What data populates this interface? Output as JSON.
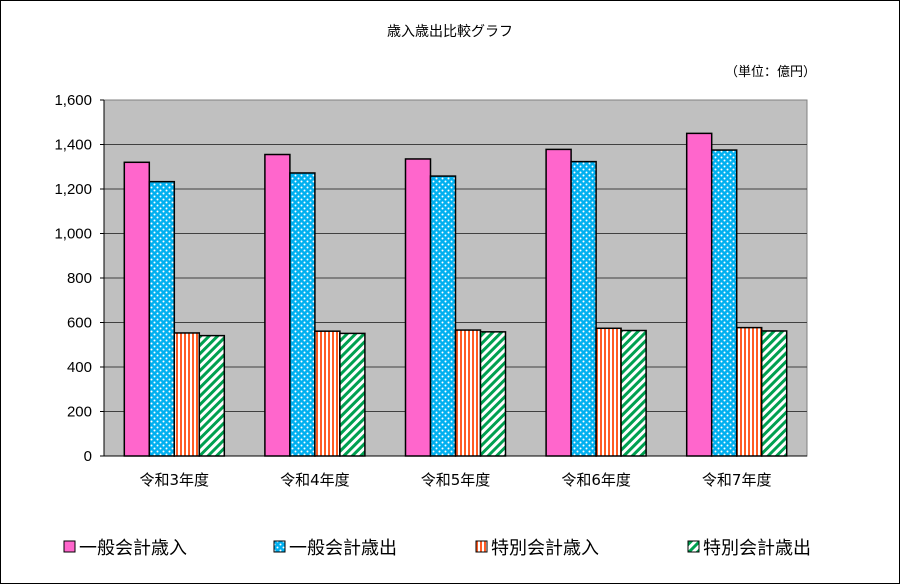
{
  "chart_data": {
    "type": "bar",
    "title": "歳入歳出比較グラフ",
    "unit_label": "（単位：億円）",
    "categories": [
      "令和3年度",
      "令和4年度",
      "令和5年度",
      "令和6年度",
      "令和7年度"
    ],
    "series": [
      {
        "name": "一般会計歳入",
        "values": [
          1320,
          1355,
          1335,
          1378,
          1450
        ],
        "color": "#ff66cc",
        "pattern": "solid"
      },
      {
        "name": "一般会計歳出",
        "values": [
          1233,
          1272,
          1258,
          1323,
          1375
        ],
        "color": "#00b0f0",
        "pattern": "dots"
      },
      {
        "name": "特別会計歳入",
        "values": [
          553,
          561,
          566,
          574,
          577
        ],
        "color": "#ff5b24",
        "pattern": "vertical-stripes"
      },
      {
        "name": "特別会計歳出",
        "values": [
          541,
          551,
          558,
          564,
          562
        ],
        "color": "#00a050",
        "pattern": "diagonal-stripes"
      }
    ],
    "ylim": [
      0,
      1600
    ],
    "yticks": [
      "0",
      "200",
      "400",
      "600",
      "800",
      "1,000",
      "1,200",
      "1,400",
      "1,600"
    ],
    "grid": true,
    "legend_position": "bottom",
    "plot_background": "#c0c0c0"
  }
}
